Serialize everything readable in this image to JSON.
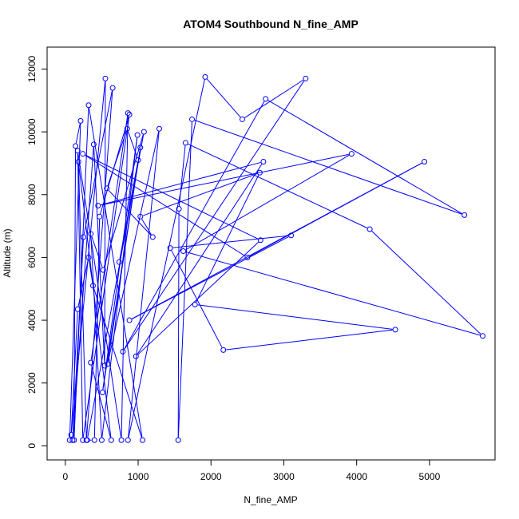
{
  "chart_data": {
    "type": "scatter",
    "title": "ATOM4 Southbound N_fine_AMP",
    "xlabel": "N_fine_AMP",
    "ylabel": "Altitude (m)",
    "xlim": [
      -250,
      5900
    ],
    "ylim": [
      -450,
      12700
    ],
    "x_ticks": [
      0,
      1000,
      2000,
      3000,
      4000,
      5000
    ],
    "x_tick_labels": [
      "0",
      "1000",
      "2000",
      "3000",
      "4000",
      "5000"
    ],
    "y_ticks": [
      0,
      2000,
      4000,
      6000,
      8000,
      10000,
      12000
    ],
    "y_tick_labels": [
      "0",
      "2000",
      "4000",
      "6000",
      "8000",
      "10000",
      "12000"
    ],
    "grid": false,
    "legend": "none",
    "connected": true,
    "colors": {
      "series": "#0000ff",
      "axis": "#000000",
      "background": "#ffffff"
    },
    "series": [
      {
        "points": [
          [
            60,
            180
          ],
          [
            210,
            10350
          ],
          [
            140,
            9550
          ],
          [
            120,
            180
          ],
          [
            320,
            10850
          ],
          [
            1060,
            180
          ],
          [
            380,
            5100
          ],
          [
            320,
            6000
          ],
          [
            170,
            4350
          ],
          [
            80,
            350
          ],
          [
            550,
            11700
          ],
          [
            540,
            2550
          ],
          [
            390,
            9600
          ],
          [
            100,
            180
          ],
          [
            250,
            6650
          ],
          [
            650,
            11400
          ],
          [
            290,
            180
          ],
          [
            180,
            9050
          ],
          [
            630,
            180
          ],
          [
            350,
            2650
          ],
          [
            860,
            10600
          ],
          [
            770,
            180
          ],
          [
            170,
            9400
          ],
          [
            240,
            180
          ],
          [
            880,
            10550
          ],
          [
            470,
            7300
          ],
          [
            400,
            180
          ],
          [
            300,
            180
          ],
          [
            1080,
            10000
          ],
          [
            520,
            5600
          ],
          [
            350,
            6750
          ],
          [
            500,
            180
          ],
          [
            990,
            9900
          ],
          [
            510,
            1700
          ],
          [
            1030,
            9500
          ],
          [
            580,
            2600
          ],
          [
            1290,
            10100
          ],
          [
            860,
            180
          ],
          [
            1920,
            11750
          ],
          [
            2430,
            10400
          ],
          [
            3300,
            11700
          ],
          [
            790,
            3000
          ],
          [
            2750,
            11050
          ],
          [
            5480,
            7350
          ],
          [
            1740,
            10400
          ],
          [
            1550,
            180
          ],
          [
            1560,
            7550
          ],
          [
            1650,
            9650
          ],
          [
            4180,
            6900
          ],
          [
            5730,
            3500
          ],
          [
            1620,
            6200
          ],
          [
            3930,
            9300
          ],
          [
            450,
            7650
          ],
          [
            2720,
            9050
          ],
          [
            970,
            2850
          ],
          [
            2680,
            6550
          ],
          [
            240,
            9300
          ],
          [
            2500,
            6000
          ],
          [
            4930,
            9050
          ],
          [
            880,
            4000
          ],
          [
            3100,
            6700
          ],
          [
            1440,
            6300
          ],
          [
            2170,
            3050
          ],
          [
            4530,
            3700
          ],
          [
            1780,
            4500
          ],
          [
            2670,
            8700
          ],
          [
            1030,
            7300
          ],
          [
            1200,
            6650
          ],
          [
            570,
            8200
          ],
          [
            850,
            10100
          ],
          [
            1000,
            9100
          ],
          [
            740,
            5850
          ]
        ]
      }
    ]
  }
}
